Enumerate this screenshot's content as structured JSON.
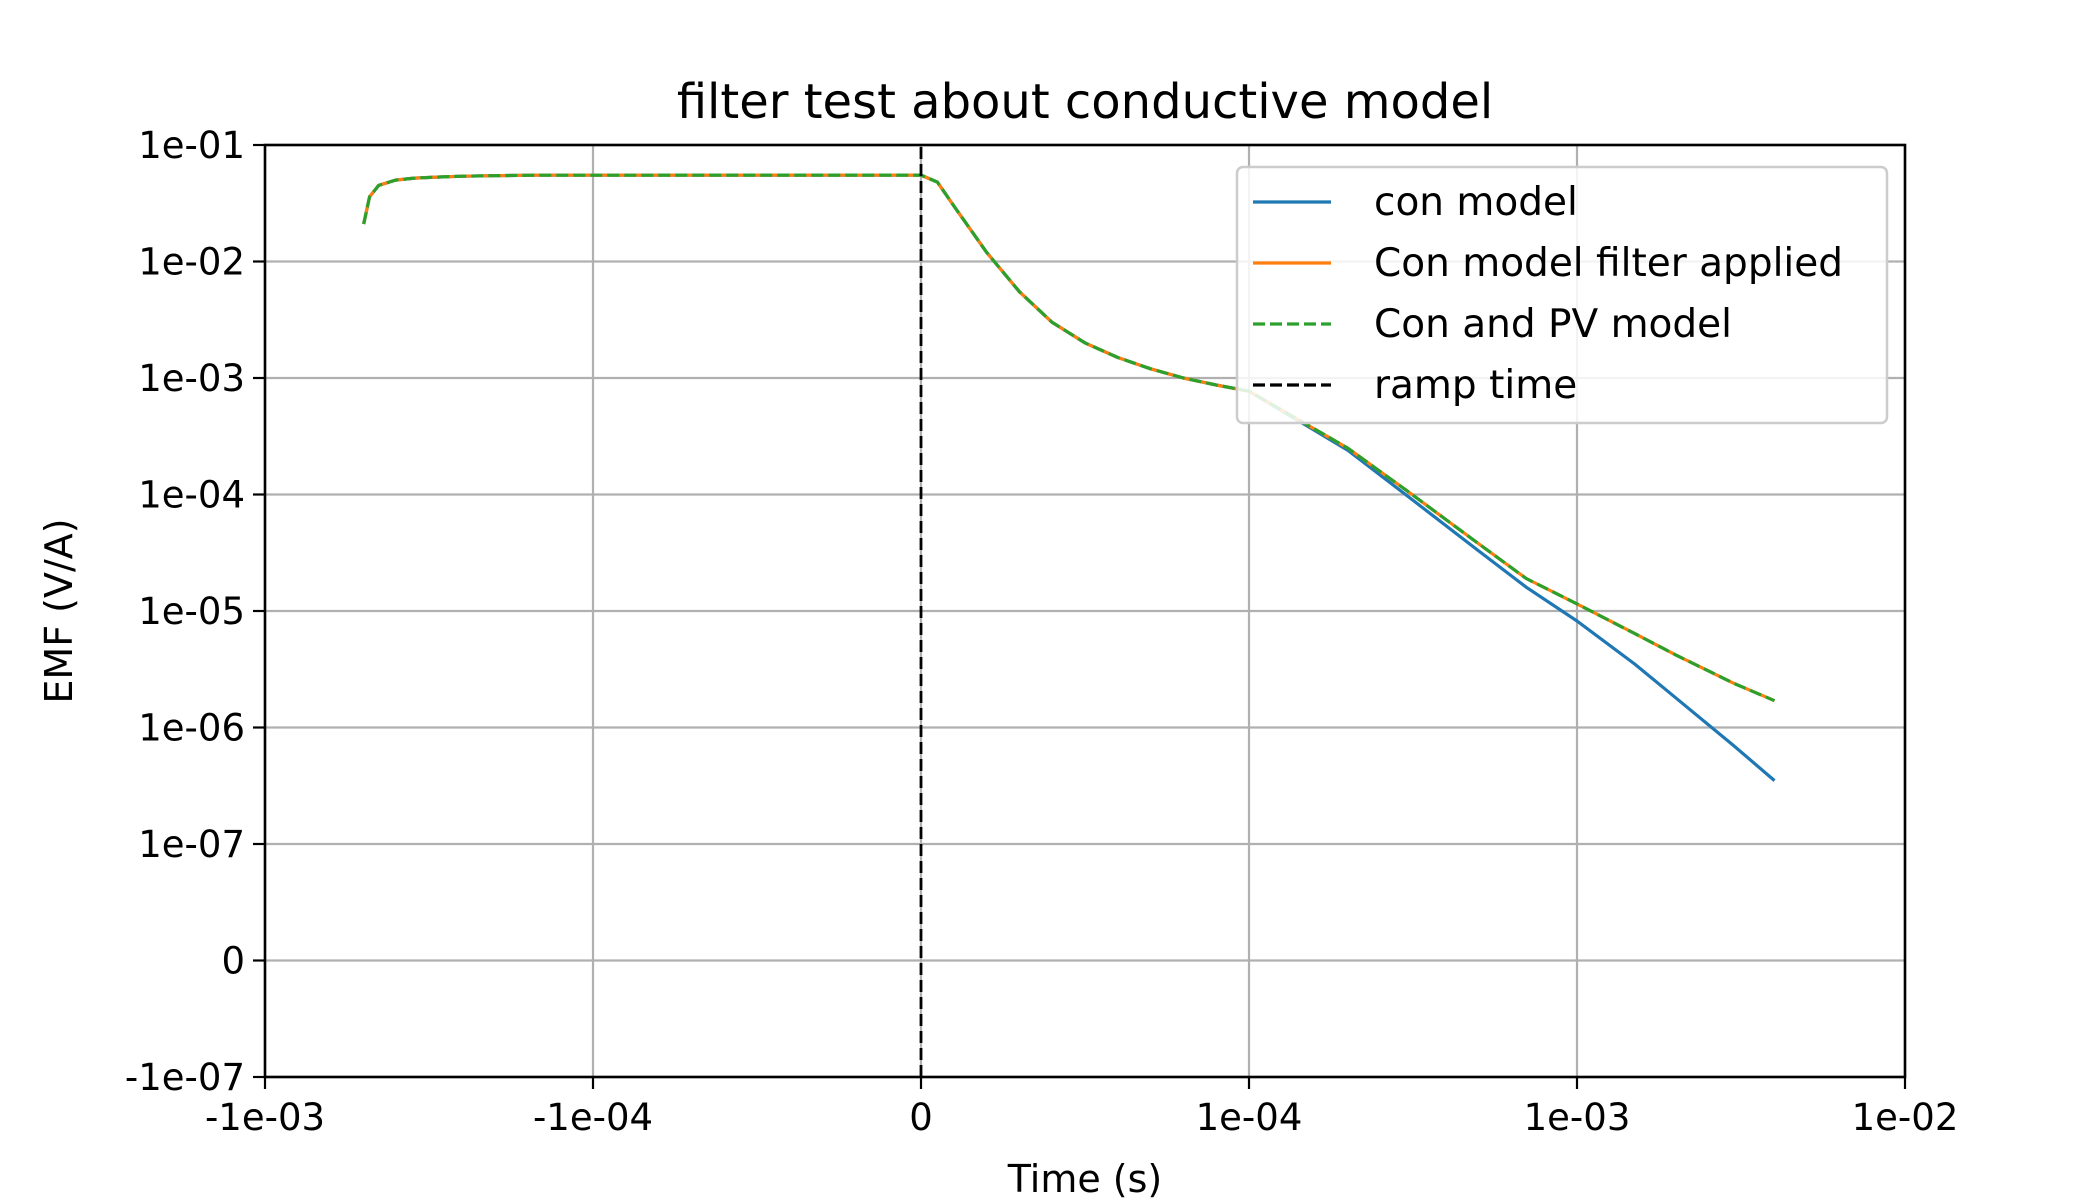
{
  "chart_data": {
    "type": "line",
    "title": "filter test about conductive model",
    "xlabel": "Time (s)",
    "ylabel": "EMF (V/A)",
    "xscale": "symlog",
    "yscale": "symlog",
    "xlim": [
      -0.001,
      0.01
    ],
    "ylim": [
      -1e-07,
      0.1
    ],
    "linthresh_x": 0.0001,
    "linthresh_y": 1e-07,
    "grid": true,
    "legend_position": "upper-right",
    "x_ticks": [
      {
        "value": -0.001,
        "label": "-1e-03"
      },
      {
        "value": -0.0001,
        "label": "-1e-04"
      },
      {
        "value": 0,
        "label": "0"
      },
      {
        "value": 0.0001,
        "label": "1e-04"
      },
      {
        "value": 0.001,
        "label": "1e-03"
      },
      {
        "value": 0.01,
        "label": "1e-02"
      }
    ],
    "y_ticks": [
      {
        "value": -1e-07,
        "label": "-1e-07"
      },
      {
        "value": 0,
        "label": "0"
      },
      {
        "value": 1e-07,
        "label": "1e-07"
      },
      {
        "value": 1e-06,
        "label": "1e-06"
      },
      {
        "value": 1e-05,
        "label": "1e-05"
      },
      {
        "value": 0.0001,
        "label": "1e-04"
      },
      {
        "value": 0.001,
        "label": "1e-03"
      },
      {
        "value": 0.01,
        "label": "1e-02"
      },
      {
        "value": 0.1,
        "label": "1e-01"
      }
    ],
    "series": [
      {
        "name": "con  model",
        "color": "#1f77b4",
        "style": "solid",
        "x": [
          -0.0005,
          -0.00048,
          -0.00045,
          -0.0004,
          -0.00035,
          -0.0003,
          -0.00025,
          -0.0002,
          -0.00015,
          -0.0001,
          -5e-05,
          0,
          5e-06,
          1e-05,
          2e-05,
          3e-05,
          4e-05,
          5e-05,
          6e-05,
          7e-05,
          8e-05,
          9e-05,
          0.0001,
          0.0002,
          0.0003,
          0.0005,
          0.0007,
          0.001,
          0.0015,
          0.002,
          0.003,
          0.004
        ],
        "y": [
          0.021,
          0.036,
          0.045,
          0.05,
          0.052,
          0.053,
          0.054,
          0.0545,
          0.055,
          0.055,
          0.0552,
          0.0552,
          0.048,
          0.03,
          0.012,
          0.0055,
          0.003,
          0.002,
          0.0015,
          0.0012,
          0.001,
          0.00087,
          0.00077,
          0.00024,
          0.0001,
          3.3e-05,
          1.6e-05,
          8.2e-06,
          3.5e-06,
          1.8e-06,
          7e-07,
          3.5e-07
        ]
      },
      {
        "name": "Con model filter applied",
        "color": "#ff7f0e",
        "style": "solid",
        "x": [
          -0.0005,
          -0.00048,
          -0.00045,
          -0.0004,
          -0.00035,
          -0.0003,
          -0.00025,
          -0.0002,
          -0.00015,
          -0.0001,
          -5e-05,
          0,
          5e-06,
          1e-05,
          2e-05,
          3e-05,
          4e-05,
          5e-05,
          6e-05,
          7e-05,
          8e-05,
          9e-05,
          0.0001,
          0.0002,
          0.0003,
          0.0005,
          0.0007,
          0.001,
          0.0015,
          0.002,
          0.003,
          0.004
        ],
        "y": [
          0.021,
          0.036,
          0.045,
          0.05,
          0.052,
          0.053,
          0.054,
          0.0545,
          0.055,
          0.055,
          0.0552,
          0.0552,
          0.048,
          0.03,
          0.012,
          0.0055,
          0.003,
          0.002,
          0.0015,
          0.0012,
          0.001,
          0.00087,
          0.00077,
          0.00025,
          0.00011,
          3.8e-05,
          1.9e-05,
          1.15e-05,
          6.4e-06,
          4.2e-06,
          2.4e-06,
          1.7e-06
        ]
      },
      {
        "name": "Con and PV model",
        "color": "#2ca02c",
        "style": "dashed",
        "x": [
          -0.0005,
          -0.00048,
          -0.00045,
          -0.0004,
          -0.00035,
          -0.0003,
          -0.00025,
          -0.0002,
          -0.00015,
          -0.0001,
          -5e-05,
          0,
          5e-06,
          1e-05,
          2e-05,
          3e-05,
          4e-05,
          5e-05,
          6e-05,
          7e-05,
          8e-05,
          9e-05,
          0.0001,
          0.0002,
          0.0003,
          0.0005,
          0.0007,
          0.001,
          0.0015,
          0.002,
          0.003,
          0.004
        ],
        "y": [
          0.021,
          0.036,
          0.045,
          0.05,
          0.052,
          0.053,
          0.054,
          0.0545,
          0.055,
          0.055,
          0.0552,
          0.0552,
          0.048,
          0.03,
          0.012,
          0.0055,
          0.003,
          0.002,
          0.0015,
          0.0012,
          0.001,
          0.00087,
          0.00077,
          0.00025,
          0.00011,
          3.8e-05,
          1.9e-05,
          1.15e-05,
          6.4e-06,
          4.2e-06,
          2.4e-06,
          1.7e-06
        ]
      },
      {
        "name": "ramp time",
        "color": "#000000",
        "style": "dashed",
        "x": [
          0,
          0
        ],
        "y": [
          -1e-07,
          0.1
        ]
      }
    ]
  }
}
